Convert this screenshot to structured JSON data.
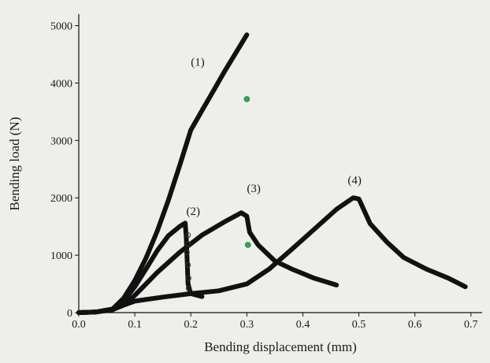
{
  "chart_data": {
    "type": "line",
    "title": "",
    "xlabel": "Bending displacement (mm)",
    "ylabel": "Bending load (N)",
    "xlim": [
      0.0,
      0.72
    ],
    "ylim": [
      0,
      5200
    ],
    "x_ticks": [
      "0.0",
      "0.1",
      "0.2",
      "0.3",
      "0.4",
      "0.5",
      "0.6",
      "0.7"
    ],
    "y_ticks": [
      "0",
      "1000",
      "2000",
      "3000",
      "4000",
      "5000"
    ],
    "grid": false,
    "colors": {
      "curve": "#111111",
      "marker": "#2fa84a"
    },
    "series": [
      {
        "label": "(1)",
        "label_at": [
          0.2,
          4300
        ],
        "points": [
          [
            0,
            0
          ],
          [
            0.03,
            10
          ],
          [
            0.06,
            60
          ],
          [
            0.08,
            250
          ],
          [
            0.1,
            560
          ],
          [
            0.12,
            950
          ],
          [
            0.14,
            1420
          ],
          [
            0.16,
            1960
          ],
          [
            0.18,
            2560
          ],
          [
            0.2,
            3180
          ],
          [
            0.22,
            3520
          ],
          [
            0.24,
            3860
          ],
          [
            0.26,
            4200
          ],
          [
            0.28,
            4520
          ],
          [
            0.3,
            4840
          ]
        ]
      },
      {
        "label": "(2)",
        "label_at": [
          0.192,
          1700
        ],
        "points": [
          [
            0,
            0
          ],
          [
            0.03,
            10
          ],
          [
            0.06,
            60
          ],
          [
            0.08,
            200
          ],
          [
            0.1,
            450
          ],
          [
            0.12,
            760
          ],
          [
            0.14,
            1080
          ],
          [
            0.16,
            1340
          ],
          [
            0.18,
            1500
          ],
          [
            0.19,
            1560
          ],
          [
            0.192,
            1300
          ],
          [
            0.195,
            500
          ],
          [
            0.2,
            330
          ],
          [
            0.22,
            280
          ]
        ]
      },
      {
        "label": "(3)",
        "label_at": [
          0.3,
          2100
        ],
        "points": [
          [
            0,
            0
          ],
          [
            0.03,
            10
          ],
          [
            0.06,
            50
          ],
          [
            0.08,
            130
          ],
          [
            0.1,
            300
          ],
          [
            0.14,
            700
          ],
          [
            0.18,
            1050
          ],
          [
            0.22,
            1350
          ],
          [
            0.26,
            1580
          ],
          [
            0.29,
            1740
          ],
          [
            0.3,
            1680
          ],
          [
            0.305,
            1400
          ],
          [
            0.32,
            1180
          ],
          [
            0.35,
            900
          ],
          [
            0.38,
            760
          ],
          [
            0.42,
            600
          ],
          [
            0.46,
            480
          ]
        ]
      },
      {
        "label": "(4)",
        "label_at": [
          0.48,
          2240
        ],
        "points": [
          [
            0,
            0
          ],
          [
            0.03,
            10
          ],
          [
            0.06,
            50
          ],
          [
            0.08,
            130
          ],
          [
            0.1,
            200
          ],
          [
            0.15,
            270
          ],
          [
            0.2,
            330
          ],
          [
            0.25,
            380
          ],
          [
            0.3,
            500
          ],
          [
            0.34,
            760
          ],
          [
            0.38,
            1100
          ],
          [
            0.42,
            1450
          ],
          [
            0.46,
            1800
          ],
          [
            0.49,
            2000
          ],
          [
            0.5,
            1980
          ],
          [
            0.52,
            1550
          ],
          [
            0.55,
            1230
          ],
          [
            0.58,
            960
          ],
          [
            0.62,
            760
          ],
          [
            0.66,
            600
          ],
          [
            0.69,
            450
          ]
        ]
      }
    ],
    "markers": {
      "filled": [
        [
          0.3,
          3720
        ],
        [
          0.302,
          1180
        ]
      ],
      "hollow": [
        [
          0.195,
          1350
        ],
        [
          0.195,
          1200
        ],
        [
          0.193,
          1050
        ],
        [
          0.195,
          830
        ],
        [
          0.196,
          600
        ],
        [
          0.196,
          420
        ]
      ]
    }
  }
}
